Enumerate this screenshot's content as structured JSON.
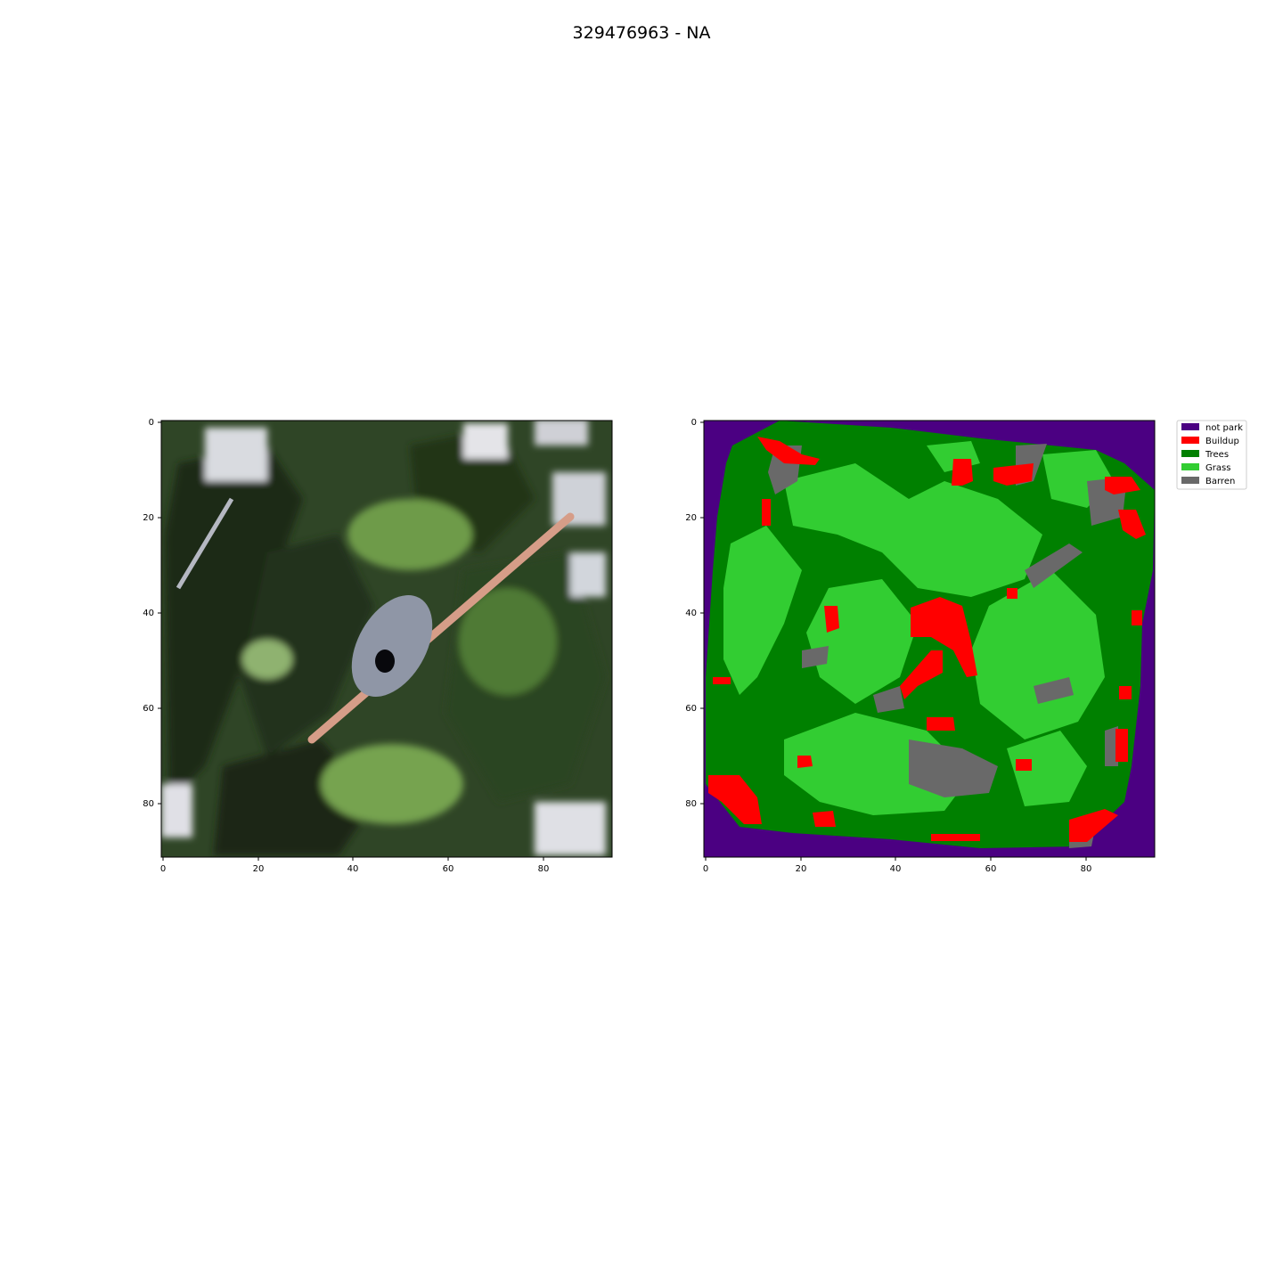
{
  "figure": {
    "title": "329476963 - NA"
  },
  "panels": [
    {
      "name": "satellite-image",
      "x_ticks": [
        "0",
        "20",
        "40",
        "60",
        "80"
      ],
      "y_ticks": [
        "0",
        "20",
        "40",
        "60",
        "80"
      ],
      "x_range": [
        0,
        94
      ],
      "y_range": [
        0,
        91
      ]
    },
    {
      "name": "landcover-map",
      "x_ticks": [
        "0",
        "20",
        "40",
        "60",
        "80"
      ],
      "y_ticks": [
        "0",
        "20",
        "40",
        "60",
        "80"
      ],
      "x_range": [
        0,
        94
      ],
      "y_range": [
        0,
        91
      ]
    }
  ],
  "legend": {
    "placement": "upper-right outside",
    "items": [
      {
        "label": "not park",
        "color": "#4b0082"
      },
      {
        "label": "Buildup",
        "color": "#ff0000"
      },
      {
        "label": "Trees",
        "color": "#008000"
      },
      {
        "label": "Grass",
        "color": "#32cd32"
      },
      {
        "label": "Barren",
        "color": "#696969"
      }
    ]
  },
  "colors": {
    "dark_tree": "#1f2f17",
    "mid_tree": "#35512a",
    "light_grass": "#6f9a4a",
    "path": "#d9a08c",
    "plaza": "#9aa0ad",
    "building": "#e6e6ea"
  }
}
